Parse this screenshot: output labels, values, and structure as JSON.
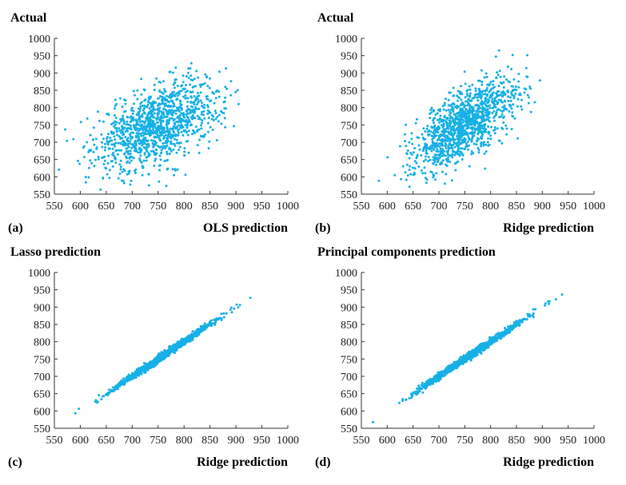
{
  "colors": {
    "points": "#16b0e6",
    "axis": "#333333",
    "text": "#111111"
  },
  "chart_data": [
    {
      "type": "scatter",
      "panel_label": "(a)",
      "ylabel": "Actual",
      "xlabel": "OLS prediction",
      "xlim": [
        550,
        1000
      ],
      "ylim": [
        550,
        1000
      ],
      "xticks": [
        "550",
        "600",
        "650",
        "700",
        "750",
        "800",
        "850",
        "900",
        "950",
        "1000"
      ],
      "yticks": [
        "550",
        "600",
        "650",
        "700",
        "750",
        "800",
        "850",
        "900",
        "950",
        "1000"
      ],
      "grid": false,
      "n_points": 1200,
      "x_center": 750,
      "y_center": 750,
      "spread_x": 60,
      "slope": 0.55,
      "resid": 55
    },
    {
      "type": "scatter",
      "panel_label": "(b)",
      "ylabel": "Actual",
      "xlabel": "Ridge prediction",
      "xlim": [
        550,
        1000
      ],
      "ylim": [
        550,
        1000
      ],
      "xticks": [
        "550",
        "600",
        "650",
        "700",
        "750",
        "800",
        "850",
        "900",
        "950",
        "1000"
      ],
      "yticks": [
        "550",
        "600",
        "650",
        "700",
        "750",
        "800",
        "850",
        "900",
        "950",
        "1000"
      ],
      "grid": false,
      "n_points": 1200,
      "x_center": 750,
      "y_center": 750,
      "spread_x": 50,
      "slope": 0.9,
      "resid": 48
    },
    {
      "type": "scatter",
      "panel_label": "(c)",
      "ylabel": "Lasso prediction",
      "xlabel": "Ridge prediction",
      "xlim": [
        550,
        1000
      ],
      "ylim": [
        550,
        1000
      ],
      "xticks": [
        "550",
        "600",
        "650",
        "700",
        "750",
        "800",
        "850",
        "900",
        "950",
        "1000"
      ],
      "yticks": [
        "550",
        "600",
        "650",
        "700",
        "750",
        "800",
        "850",
        "900",
        "950",
        "1000"
      ],
      "grid": false,
      "n_points": 1200,
      "x_center": 760,
      "y_center": 760,
      "spread_x": 50,
      "slope": 1.0,
      "resid": 5
    },
    {
      "type": "scatter",
      "panel_label": "(d)",
      "ylabel": "Principal components prediction",
      "xlabel": "Ridge prediction",
      "xlim": [
        550,
        1000
      ],
      "ylim": [
        550,
        1000
      ],
      "xticks": [
        "550",
        "600",
        "650",
        "700",
        "750",
        "800",
        "850",
        "900",
        "950",
        "1000"
      ],
      "yticks": [
        "550",
        "600",
        "650",
        "700",
        "750",
        "800",
        "850",
        "900",
        "950",
        "1000"
      ],
      "grid": false,
      "n_points": 1200,
      "x_center": 760,
      "y_center": 760,
      "spread_x": 50,
      "slope": 1.0,
      "resid": 5
    }
  ]
}
